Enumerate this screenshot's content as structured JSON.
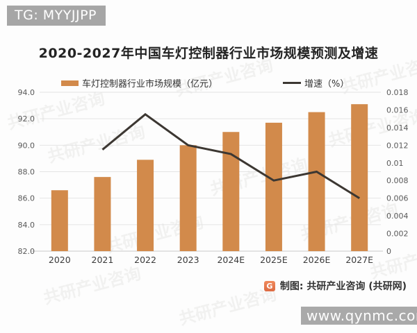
{
  "badge": {
    "text": "TG: MYYJJPP"
  },
  "title": "2020-2027年中国车灯控制器行业市场规模预测及增速",
  "legend": {
    "bars_label": "车灯控制器行业市场规模（亿元）",
    "line_label": "增速（%）"
  },
  "footer": {
    "logo_letter": "G",
    "credit": "制图: 共研产业咨询 (共研网)"
  },
  "watermark_url": "www.qynmc.com",
  "watermark_text": "共研产业咨询",
  "colors": {
    "bar": "#d28a4b",
    "line": "#3c3732",
    "grid": "#e4e4e4",
    "baseline": "#c9c9c9",
    "badge_bg": "#a6a6a6"
  },
  "chart_data": {
    "type": "bar",
    "title": "2020-2027年中国车灯控制器行业市场规模预测及增速",
    "categories": [
      "2020",
      "2021",
      "2022",
      "2023",
      "2024E",
      "2025E",
      "2026E",
      "2027E"
    ],
    "series": [
      {
        "name": "车灯控制器行业市场规模（亿元）",
        "type": "bar",
        "axis": "left",
        "values": [
          86.6,
          87.6,
          88.9,
          90.0,
          91.0,
          91.7,
          92.5,
          93.1
        ]
      },
      {
        "name": "增速（%）",
        "type": "line",
        "axis": "right",
        "values": [
          null,
          0.0115,
          0.0155,
          0.012,
          0.011,
          0.008,
          0.009,
          0.006
        ]
      }
    ],
    "left_axis": {
      "min": 82.0,
      "max": 94.0,
      "step": 2.0,
      "decimals": 1
    },
    "right_axis": {
      "min": 0,
      "max": 0.018,
      "step": 0.002
    },
    "grid": true,
    "legend_position": "top"
  }
}
